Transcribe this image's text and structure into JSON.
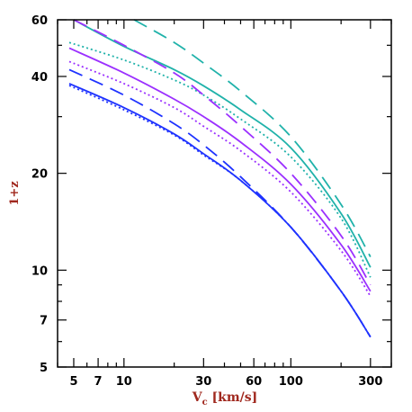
{
  "chart_data": {
    "type": "line",
    "title": "",
    "xlabel": "V",
    "xlabel_subscript": "c",
    "xlabel_units": " [km/s]",
    "ylabel": "1+z",
    "xscale": "log",
    "yscale": "log",
    "xlim": [
      4,
      400
    ],
    "ylim": [
      5,
      60
    ],
    "x_ticks": [
      {
        "value": 5,
        "label": "5"
      },
      {
        "value": 7,
        "label": "7"
      },
      {
        "value": 10,
        "label": "10"
      },
      {
        "value": 30,
        "label": "30"
      },
      {
        "value": 60,
        "label": "60"
      },
      {
        "value": 100,
        "label": "100"
      },
      {
        "value": 300,
        "label": "300"
      }
    ],
    "x_minor_ticks": [
      4,
      6,
      8,
      9,
      20,
      40,
      50,
      70,
      80,
      90,
      200,
      400
    ],
    "y_ticks": [
      {
        "value": 5,
        "label": "5"
      },
      {
        "value": 7,
        "label": "7"
      },
      {
        "value": 10,
        "label": "10"
      },
      {
        "value": 20,
        "label": "20"
      },
      {
        "value": 40,
        "label": "40"
      },
      {
        "value": 60,
        "label": "60"
      }
    ],
    "y_minor_ticks": [
      6,
      8,
      9,
      30,
      50
    ],
    "grid": false,
    "legend": "none",
    "series": [
      {
        "color": "#20b2aa",
        "dash": "long-dash",
        "points": [
          [
            11.5,
            60
          ],
          [
            20,
            51
          ],
          [
            30,
            44
          ],
          [
            50,
            36
          ],
          [
            100,
            26
          ],
          [
            200,
            16
          ],
          [
            300,
            11
          ]
        ]
      },
      {
        "color": "#20b2aa",
        "dash": "solid",
        "points": [
          [
            5,
            60
          ],
          [
            10,
            49.6
          ],
          [
            20,
            42
          ],
          [
            30,
            37.4
          ],
          [
            50,
            31.5
          ],
          [
            100,
            24
          ],
          [
            200,
            15
          ],
          [
            300,
            10.2
          ]
        ]
      },
      {
        "color": "#20b2aa",
        "dash": "dotted",
        "points": [
          [
            4.7,
            51
          ],
          [
            10,
            45
          ],
          [
            20,
            39
          ],
          [
            30,
            35
          ],
          [
            50,
            29.5
          ],
          [
            100,
            22.5
          ],
          [
            200,
            14.5
          ],
          [
            300,
            9.5
          ]
        ]
      },
      {
        "color": "#9b30ff",
        "dash": "long-dash",
        "points": [
          [
            5,
            60
          ],
          [
            10,
            50
          ],
          [
            20,
            41
          ],
          [
            30,
            35
          ],
          [
            50,
            28
          ],
          [
            100,
            20
          ],
          [
            200,
            12.8
          ],
          [
            300,
            9
          ]
        ]
      },
      {
        "color": "#9b30ff",
        "dash": "solid",
        "points": [
          [
            4.7,
            49
          ],
          [
            10,
            41
          ],
          [
            20,
            34
          ],
          [
            30,
            30
          ],
          [
            50,
            25
          ],
          [
            100,
            18.5
          ],
          [
            200,
            12
          ],
          [
            300,
            8.6
          ]
        ]
      },
      {
        "color": "#9b30ff",
        "dash": "dotted",
        "points": [
          [
            4.7,
            44.5
          ],
          [
            10,
            38
          ],
          [
            20,
            32
          ],
          [
            30,
            28
          ],
          [
            50,
            23.5
          ],
          [
            100,
            17.5
          ],
          [
            200,
            11.5
          ],
          [
            300,
            8.3
          ]
        ]
      },
      {
        "color": "#1e32ff",
        "dash": "long-dash",
        "points": [
          [
            4.7,
            42
          ],
          [
            10,
            35
          ],
          [
            20,
            28.5
          ],
          [
            30,
            24.5
          ],
          [
            50,
            19.5
          ],
          [
            100,
            13.6
          ],
          [
            200,
            8.6
          ],
          [
            300,
            6.2
          ]
        ]
      },
      {
        "color": "#1e32ff",
        "dash": "solid",
        "points": [
          [
            4.7,
            38
          ],
          [
            10,
            32
          ],
          [
            20,
            26.5
          ],
          [
            30,
            23
          ],
          [
            50,
            19
          ],
          [
            100,
            13.6
          ],
          [
            200,
            8.6
          ],
          [
            300,
            6.2
          ]
        ]
      },
      {
        "color": "#1e32ff",
        "dash": "dotted",
        "points": [
          [
            4.7,
            37.5
          ],
          [
            10,
            31.5
          ],
          [
            20,
            26.3
          ],
          [
            30,
            22.8
          ],
          [
            50,
            19
          ],
          [
            100,
            13.6
          ],
          [
            200,
            8.6
          ],
          [
            300,
            6.2
          ]
        ]
      }
    ]
  }
}
